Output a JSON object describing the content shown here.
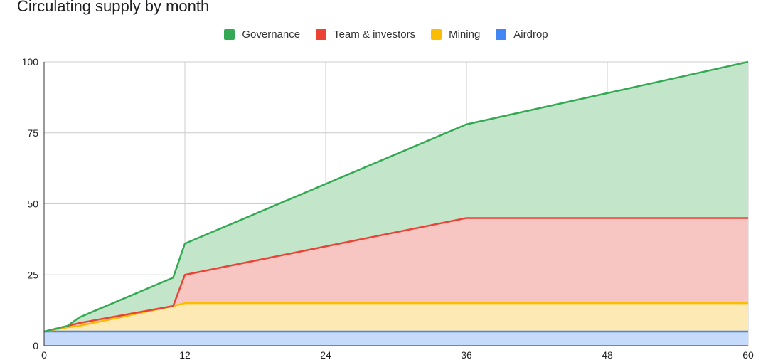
{
  "chart_data": {
    "type": "area",
    "stacked": true,
    "title": "Circulating supply by month",
    "xlabel": "",
    "ylabel": "",
    "x_ticks": [
      "0",
      "12",
      "24",
      "36",
      "48",
      "60"
    ],
    "y_ticks": [
      "0",
      "25",
      "50",
      "75",
      "100"
    ],
    "xlim": [
      0,
      60
    ],
    "ylim": [
      0,
      100
    ],
    "grid": true,
    "legend_position": "top",
    "x": [
      0,
      2,
      3,
      11,
      12,
      36,
      60
    ],
    "series": [
      {
        "name": "Airdrop",
        "color": "#4285F4",
        "fill": "#C6DAFC",
        "values": [
          5,
          5,
          5,
          5,
          5,
          5,
          5
        ]
      },
      {
        "name": "Mining",
        "color": "#FBBC04",
        "fill": "#FDE9B4",
        "values": [
          0,
          1.5,
          2,
          9,
          10,
          10,
          10
        ]
      },
      {
        "name": "Team & investors",
        "color": "#EA4335",
        "fill": "#F8C6C2",
        "values": [
          0,
          0.5,
          1,
          0,
          10,
          30,
          30
        ]
      },
      {
        "name": "Governance",
        "color": "#34A853",
        "fill": "#C3E6CB",
        "values": [
          0,
          0,
          2,
          10,
          11,
          33,
          55
        ]
      }
    ]
  }
}
